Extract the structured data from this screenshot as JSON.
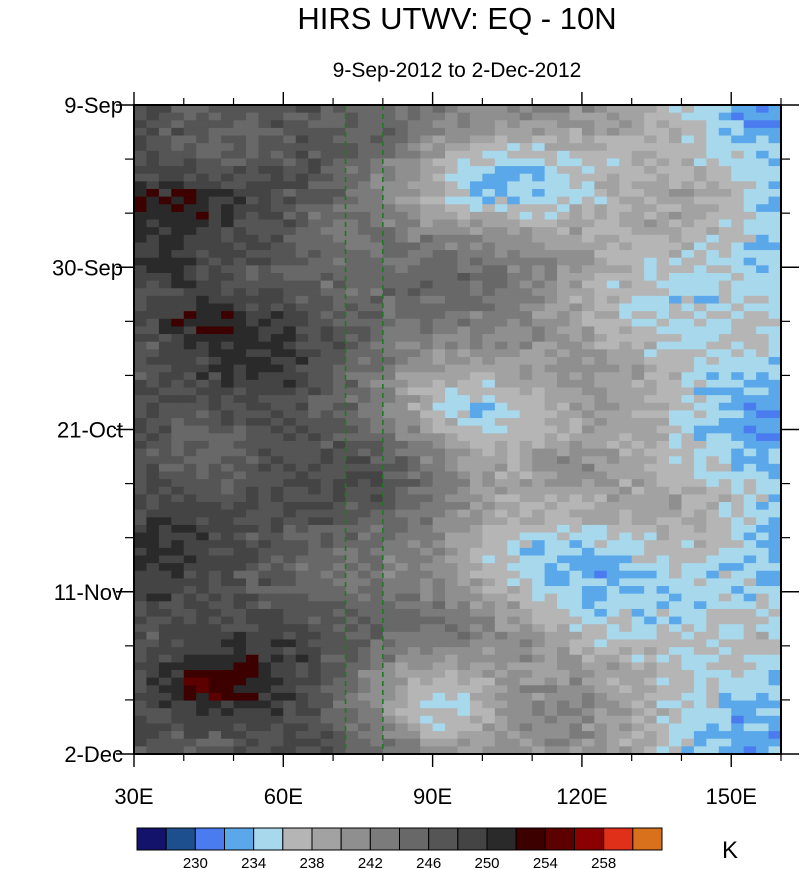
{
  "chart_data": {
    "type": "heatmap",
    "title": "HIRS UTWV: EQ - 10N",
    "subtitle": "9-Sep-2012 to 2-Dec-2012",
    "xlabel": "",
    "ylabel": "",
    "x_range": [
      30,
      160
    ],
    "y_range_days": [
      0,
      84
    ],
    "x_major_ticks": [
      {
        "value": 30,
        "label": "30E"
      },
      {
        "value": 60,
        "label": "60E"
      },
      {
        "value": 90,
        "label": "90E"
      },
      {
        "value": 120,
        "label": "120E"
      },
      {
        "value": 150,
        "label": "150E"
      }
    ],
    "x_minor_ticks": [
      40,
      50,
      70,
      80,
      100,
      110,
      130,
      140,
      160
    ],
    "y_major_ticks": [
      {
        "day": 0,
        "label": "9-Sep"
      },
      {
        "day": 21,
        "label": "30-Sep"
      },
      {
        "day": 42,
        "label": "21-Oct"
      },
      {
        "day": 63,
        "label": "11-Nov"
      },
      {
        "day": 84,
        "label": "2-Dec"
      }
    ],
    "y_minor_ticks": [
      7,
      14,
      28,
      35,
      49,
      56,
      70,
      77
    ],
    "reference_lines": [
      {
        "x": 72.5,
        "color": "#1f7a1f",
        "style": "dashed"
      },
      {
        "x": 80,
        "color": "#1f7a1f",
        "style": "dashed"
      }
    ],
    "colorbar": {
      "units": "K",
      "levels": [
        228,
        230,
        232,
        234,
        236,
        238,
        240,
        242,
        244,
        246,
        248,
        250,
        252,
        254,
        256,
        258
      ],
      "labels": [
        {
          "value": 230,
          "text": "230"
        },
        {
          "value": 234,
          "text": "234"
        },
        {
          "value": 238,
          "text": "238"
        },
        {
          "value": 242,
          "text": "242"
        },
        {
          "value": 246,
          "text": "246"
        },
        {
          "value": 250,
          "text": "250"
        },
        {
          "value": 254,
          "text": "254"
        },
        {
          "value": 258,
          "text": "258"
        }
      ],
      "colors": [
        "#13136b",
        "#1d4f8f",
        "#4a7cf0",
        "#5aa8ea",
        "#a8d8ec",
        "#b5b5b5",
        "#a2a2a2",
        "#8f8f8f",
        "#7b7b7b",
        "#686868",
        "#555555",
        "#444444",
        "#2a2a2a",
        "#3d0000",
        "#5c0000",
        "#8b0000",
        "#e0301a",
        "#d8701c"
      ]
    },
    "field_features": {
      "dry_regions": [
        {
          "x_center": 95,
          "x_halfwidth": 22,
          "y_day": 10,
          "strength": 0.95
        },
        {
          "x_center": 100,
          "x_halfwidth": 18,
          "y_day": 40,
          "strength": 0.9
        },
        {
          "x_center": 110,
          "x_halfwidth": 25,
          "y_day": 60,
          "strength": 0.9
        },
        {
          "x_center": 92,
          "x_halfwidth": 14,
          "y_day": 78,
          "strength": 0.8
        }
      ],
      "moist_regions": [
        {
          "x_center": 40,
          "x_halfwidth": 12,
          "y_day": 12,
          "strength": 0.5
        },
        {
          "x_center": 42,
          "x_halfwidth": 10,
          "y_day": 28,
          "strength": 0.6
        },
        {
          "x_center": 45,
          "x_halfwidth": 10,
          "y_day": 75,
          "strength": 0.8
        },
        {
          "x_center": 118,
          "x_halfwidth": 10,
          "y_day": 47,
          "strength": 0.5
        }
      ]
    }
  }
}
